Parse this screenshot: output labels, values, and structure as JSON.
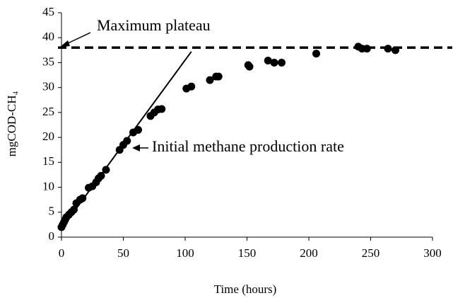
{
  "chart_data": {
    "type": "scatter",
    "xlabel": "Time (hours)",
    "ylabel": "mgCOD-CH₄",
    "x": [
      0,
      1,
      2,
      3,
      4,
      6,
      8,
      10,
      12,
      15,
      17,
      22,
      25,
      28,
      30,
      32,
      36,
      47,
      50,
      53,
      58,
      62,
      72,
      75,
      78,
      81,
      101,
      105,
      120,
      125,
      127,
      151,
      152,
      167,
      172,
      178,
      206,
      240,
      243,
      247,
      264,
      270
    ],
    "values": [
      2,
      2.5,
      3,
      3.5,
      4,
      4.5,
      5,
      5.5,
      6.8,
      7.5,
      7.8,
      9.9,
      10.2,
      11,
      11.8,
      12.3,
      13.5,
      17.5,
      18.5,
      19.3,
      21,
      21.5,
      24.3,
      25,
      25.6,
      25.7,
      29.8,
      30.2,
      31.5,
      32.2,
      32.2,
      34.5,
      34.2,
      35.4,
      35,
      35,
      36.8,
      38.2,
      37.8,
      37.8,
      37.8,
      37.5
    ],
    "color": "#000000",
    "plateau": 38,
    "rate_line": {
      "x": [
        0,
        105
      ],
      "y": [
        1.7,
        37.2
      ]
    },
    "annotations": [
      "Maximum plateau",
      "Initial methane production rate"
    ],
    "xlim": [
      0,
      300
    ],
    "xticks": [
      0,
      50,
      100,
      150,
      200,
      250,
      300
    ],
    "ylim": [
      0,
      45
    ],
    "yticks": [
      0,
      5,
      10,
      15,
      20,
      25,
      30,
      35,
      40,
      45
    ]
  }
}
